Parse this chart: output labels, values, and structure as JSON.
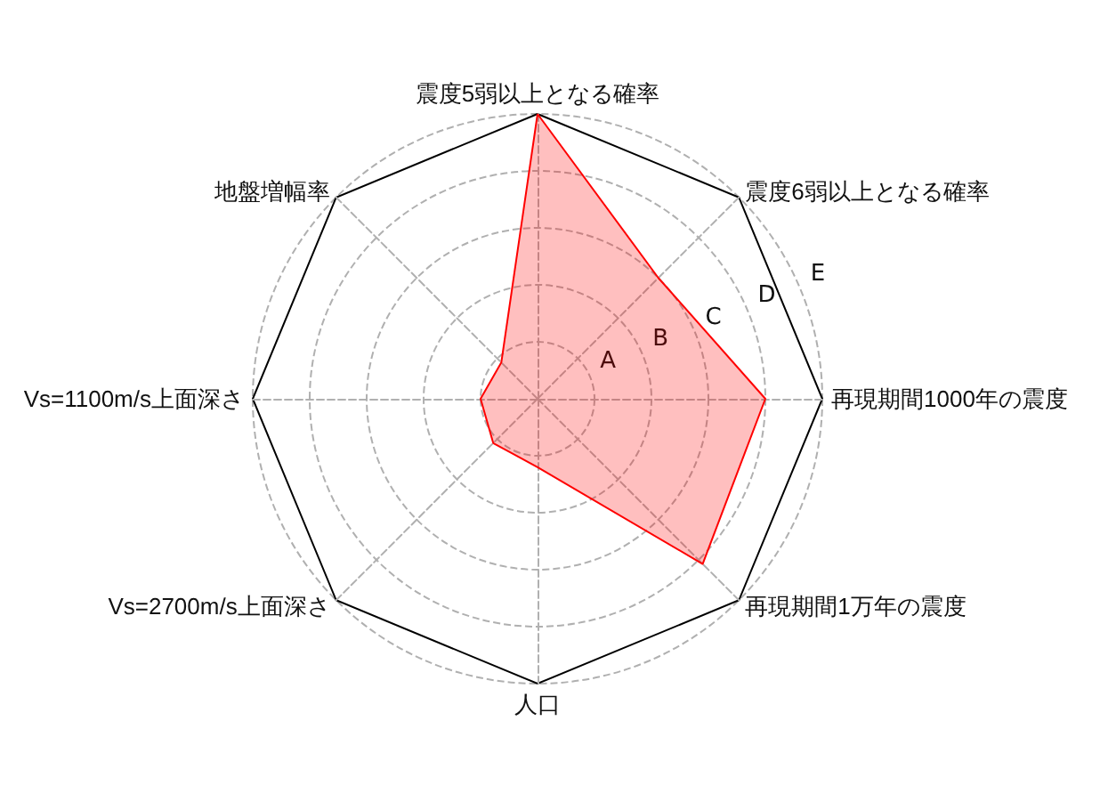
{
  "chart_data": {
    "type": "radar",
    "categories": [
      "震度5弱以上となる確率",
      "震度6弱以上となる確率",
      "再現期間1000年の震度",
      "再現期間1万年の震度",
      "人口",
      "Vs=2700m/s上面深さ",
      "Vs=1100m/s上面深さ",
      "地盤増幅率"
    ],
    "series": [
      {
        "color": "#ff0000",
        "values": [
          5,
          3,
          4,
          4.1,
          1.2,
          1.1,
          1,
          0.9
        ]
      }
    ],
    "ylim": [
      0,
      5
    ],
    "yticks": [
      {
        "value": 1,
        "label": "A"
      },
      {
        "value": 2,
        "label": "B"
      },
      {
        "value": 3,
        "label": "C"
      },
      {
        "value": 4,
        "label": "D"
      },
      {
        "value": 5,
        "label": "E"
      }
    ],
    "grid": true
  }
}
